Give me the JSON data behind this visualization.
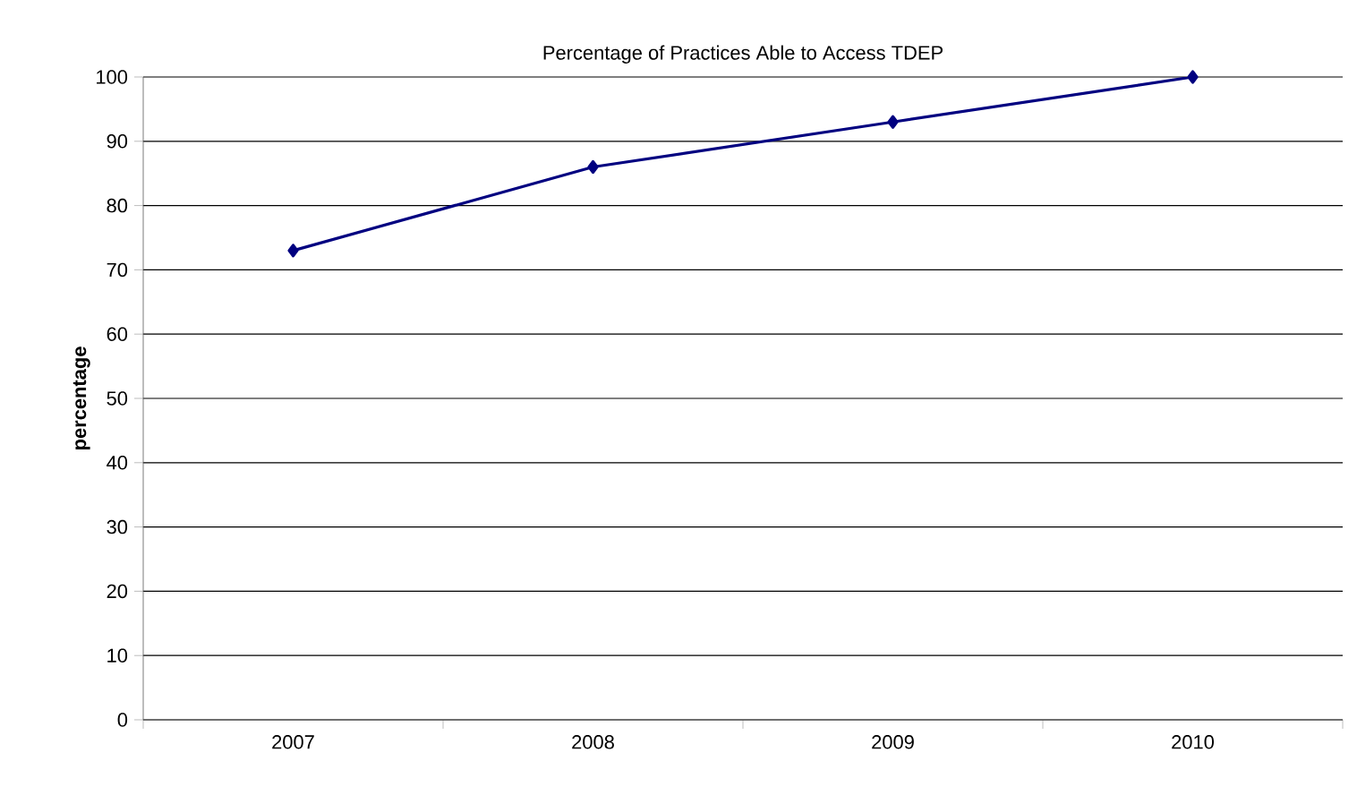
{
  "chart_data": {
    "type": "line",
    "title": "Percentage of Practices Able to Access TDEP",
    "ylabel": "percentage",
    "categories": [
      "2007",
      "2008",
      "2009",
      "2010"
    ],
    "series": [
      {
        "color": "#000080",
        "values": [
          73,
          86,
          93,
          100
        ]
      }
    ],
    "ylim": [
      0,
      100
    ],
    "yticks": [
      0,
      10,
      20,
      30,
      40,
      50,
      60,
      70,
      80,
      90,
      100
    ],
    "grid": "y",
    "marker": "diamond",
    "line_style": "solid"
  }
}
